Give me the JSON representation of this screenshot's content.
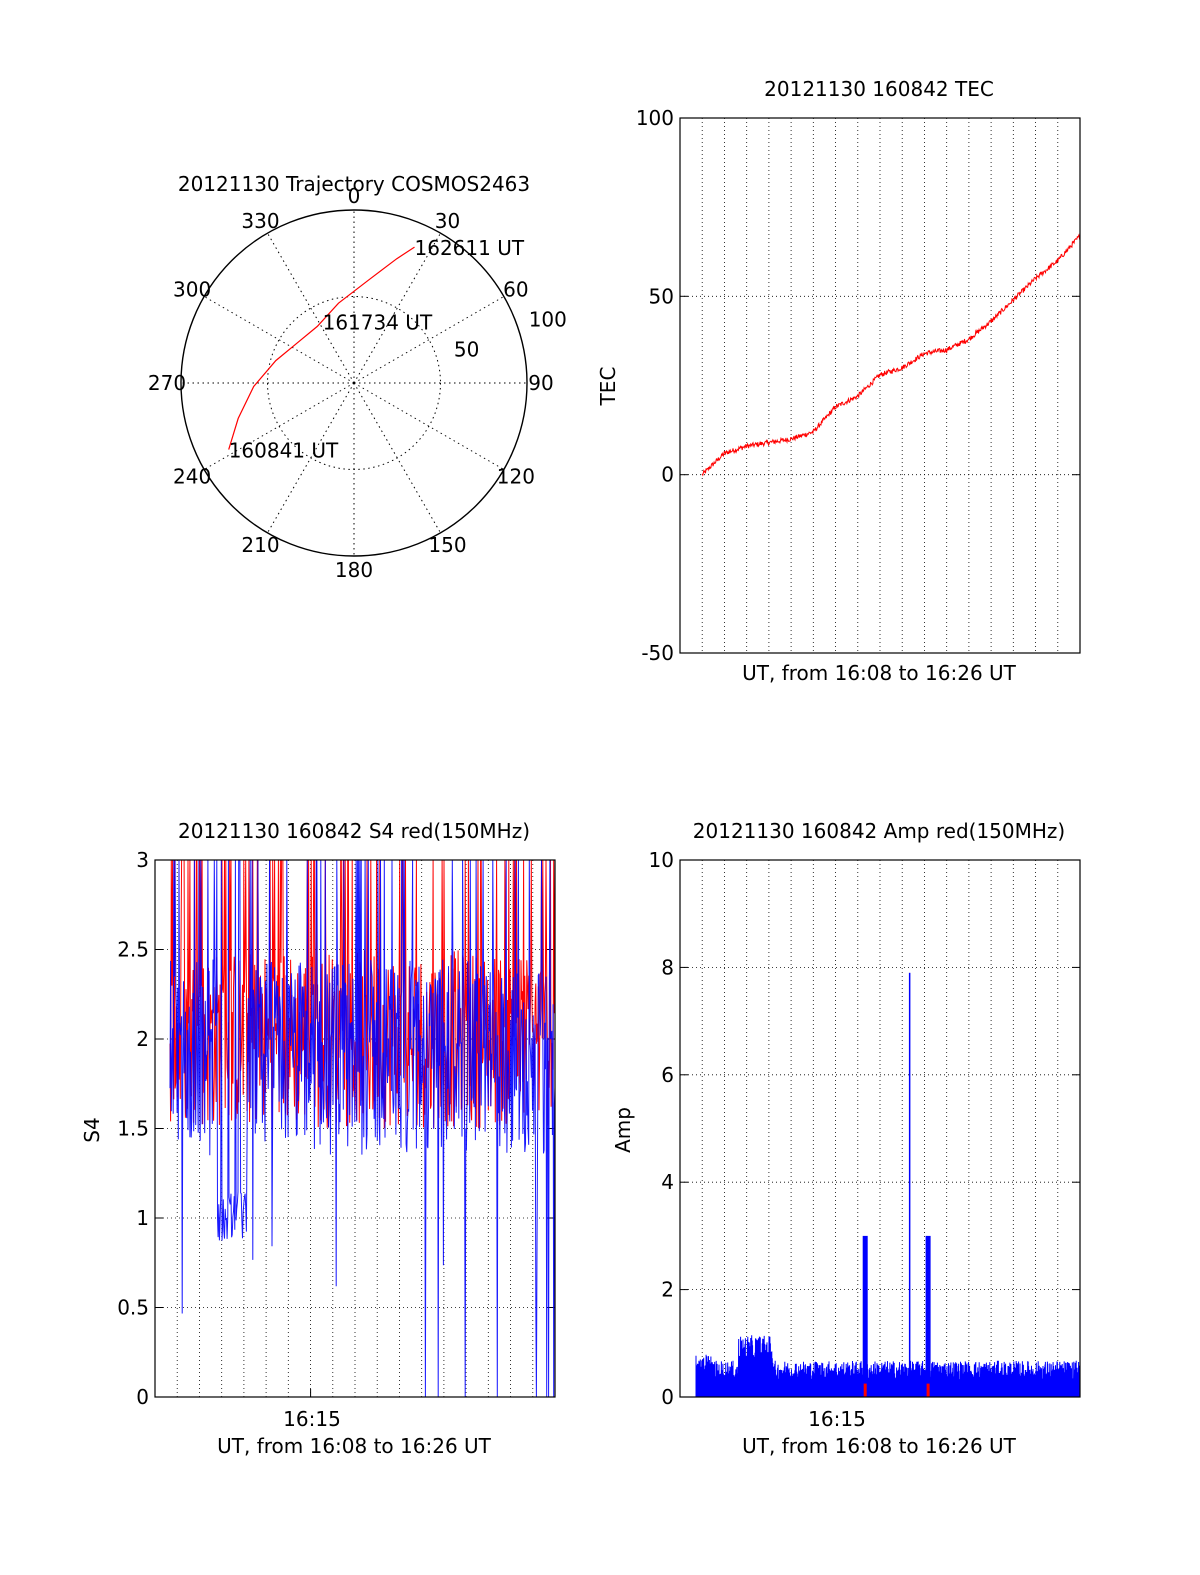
{
  "colors": {
    "red": "#ff0000",
    "blue": "#0000ff",
    "axis": "#000000",
    "grid": "#000000"
  },
  "chart_data": [
    {
      "type": "polar",
      "title": "20121130 Trajectory COSMOS2463",
      "azimuth_labels": [
        "0",
        "30",
        "60",
        "90",
        "120",
        "150",
        "180",
        "210",
        "240",
        "270",
        "300",
        "330"
      ],
      "radial_labels": [
        "50",
        "100"
      ],
      "radial_values": [
        50,
        100
      ],
      "series": [
        {
          "color": "#ff0000",
          "points": [
            [
              242,
              82
            ],
            [
              253,
              70
            ],
            [
              268,
              58
            ],
            [
              286,
              47
            ],
            [
              306,
              40
            ],
            [
              327,
              39
            ],
            [
              349,
              47
            ],
            [
              8,
              60
            ],
            [
              19,
              76
            ],
            [
              24,
              86
            ]
          ]
        }
      ],
      "annotations": [
        {
          "text": "162611 UT",
          "az": 24,
          "r": 86
        },
        {
          "text": "161734 UT",
          "az": 333,
          "r": 40
        },
        {
          "text": "160841 UT",
          "az": 242,
          "r": 82
        }
      ]
    },
    {
      "type": "line",
      "title": "20121130 160842 TEC",
      "xlabel": "UT, from 16:08 to 16:26 UT",
      "ylabel": "TEC",
      "ylim": [
        -50,
        100
      ],
      "yticks": [
        "-50",
        "0",
        "50",
        "100"
      ],
      "xlim": [
        "16:08",
        "16:26"
      ],
      "grid": true,
      "series": [
        {
          "color": "#ff0000",
          "x": [
            "16:09",
            "16:10",
            "16:11",
            "16:12",
            "16:13",
            "16:14",
            "16:15",
            "16:16",
            "16:17",
            "16:18",
            "16:19",
            "16:20",
            "16:21",
            "16:22",
            "16:23",
            "16:24",
            "16:25",
            "16:26"
          ],
          "values": [
            0,
            6,
            8,
            9,
            10,
            12,
            19,
            22,
            28,
            30,
            34,
            35,
            38,
            43,
            49,
            55,
            60,
            67
          ]
        }
      ]
    },
    {
      "type": "line",
      "title": "20121130 160842 S4 red(150MHz)",
      "xlabel": "UT, from 16:08 to 16:26 UT",
      "ylabel": "S4",
      "ylim": [
        0,
        3
      ],
      "yticks": [
        "0",
        "0.5",
        "1",
        "1.5",
        "2",
        "2.5",
        "3"
      ],
      "xticks": [
        "16:15"
      ],
      "xlim": [
        "16:08",
        "16:26"
      ],
      "grid": true,
      "series": [
        {
          "color": "#ff0000",
          "mean": 2.0,
          "min": 1.5,
          "max": 3.0
        },
        {
          "color": "#0000ff",
          "mean": 1.9,
          "min": 0.0,
          "max": 3.0
        }
      ]
    },
    {
      "type": "line",
      "title": "20121130 160842 Amp red(150MHz)",
      "xlabel": "UT, from 16:08 to 16:26 UT",
      "ylabel": "Amp",
      "ylim": [
        0,
        10
      ],
      "yticks": [
        "0",
        "2",
        "4",
        "6",
        "8",
        "10"
      ],
      "xticks": [
        "16:15"
      ],
      "xlim": [
        "16:08",
        "16:26"
      ],
      "grid": true,
      "series": [
        {
          "color": "#0000ff",
          "baseline": 0.5,
          "spikes": [
            {
              "x": "16:16:20",
              "y": 3.0
            },
            {
              "x": "16:18:20",
              "y": 7.9
            },
            {
              "x": "16:19:10",
              "y": 3.0
            }
          ]
        },
        {
          "color": "#ff0000",
          "markers": [
            {
              "x": "16:16:20",
              "y": 0.25
            },
            {
              "x": "16:19:10",
              "y": 0.25
            }
          ]
        }
      ]
    }
  ]
}
